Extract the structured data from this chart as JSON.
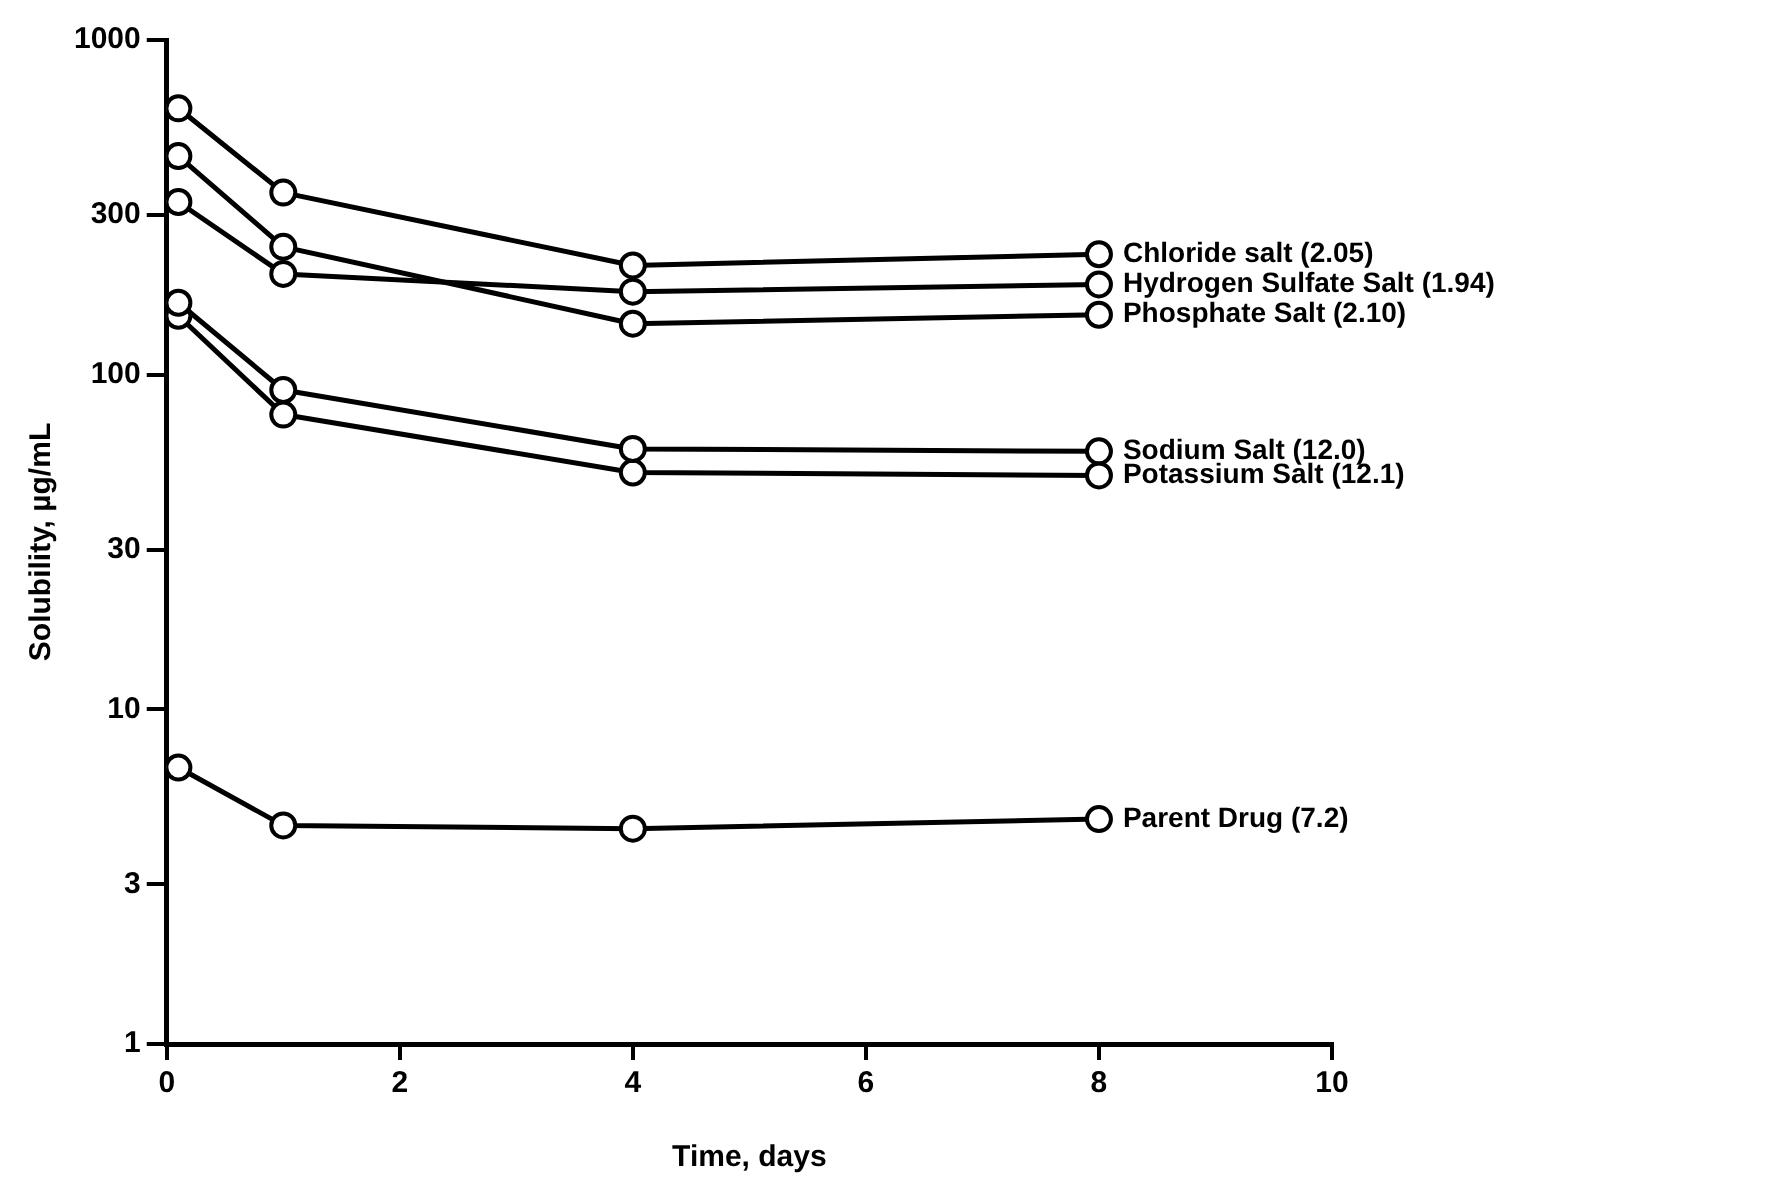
{
  "chart_data": {
    "type": "line",
    "xlabel": "Time, days",
    "ylabel": "Solubility, µg/mL",
    "xlim": [
      0,
      10
    ],
    "xticks": [
      0,
      2,
      4,
      6,
      8,
      10
    ],
    "ylim": [
      1,
      1000
    ],
    "yticks": [
      1,
      3,
      10,
      30,
      100,
      300,
      1000
    ],
    "log": "y",
    "grid": false,
    "legend": false,
    "marker": "circle",
    "line_style": "solid",
    "series": [
      {
        "name": "Chloride salt (2.05)",
        "color": "#000000",
        "x": [
          0.1,
          1,
          4,
          8
        ],
        "values": [
          625,
          350,
          212,
          229
        ]
      },
      {
        "name": "Hydrogen Sulfate Salt (1.94)",
        "color": "#000000",
        "x": [
          0.1,
          1,
          4,
          8
        ],
        "values": [
          328,
          200,
          177,
          186
        ]
      },
      {
        "name": "Phosphate Salt (2.10)",
        "color": "#000000",
        "x": [
          0.1,
          1,
          4,
          8
        ],
        "values": [
          450,
          241,
          142,
          151
        ]
      },
      {
        "name": "Sodium Salt (12.0)",
        "color": "#000000",
        "x": [
          0.1,
          1,
          4,
          8
        ],
        "values": [
          164,
          90,
          60,
          59
        ]
      },
      {
        "name": "Potassium Salt (12.1)",
        "color": "#000000",
        "x": [
          0.1,
          1,
          4,
          8
        ],
        "values": [
          150,
          76,
          51,
          50
        ]
      },
      {
        "name": "Parent Drug (7.2)",
        "color": "#000000",
        "x": [
          0.1,
          1,
          4,
          8
        ],
        "values": [
          6.7,
          4.5,
          4.4,
          4.7
        ]
      }
    ]
  }
}
